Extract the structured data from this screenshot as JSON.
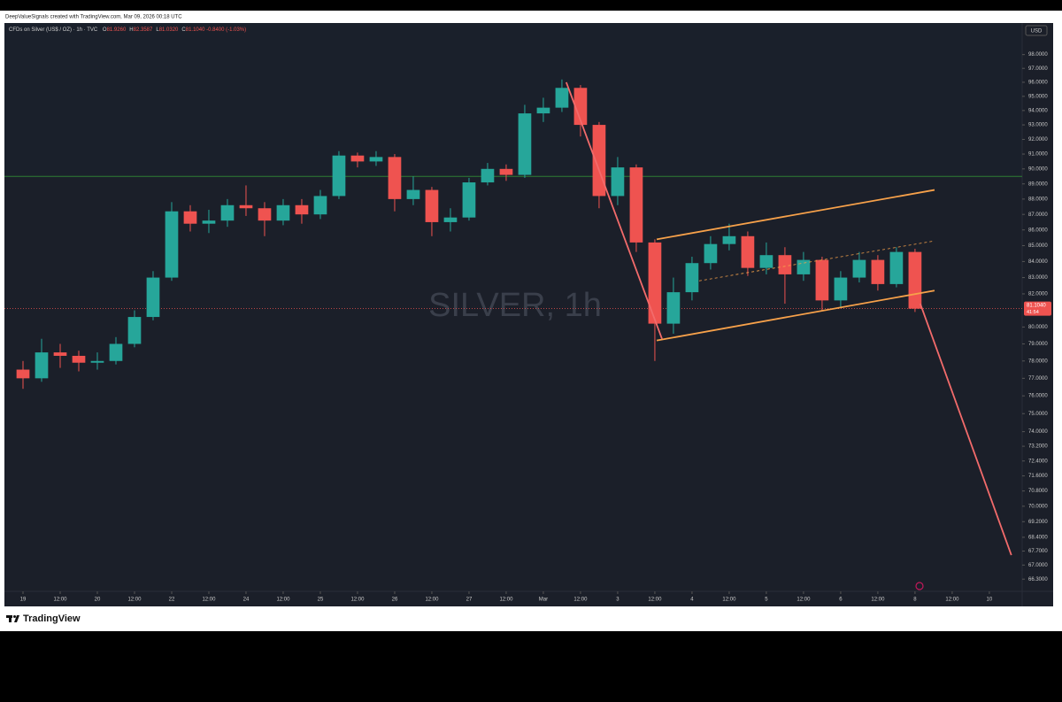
{
  "header": {
    "caption": "DeepValueSignals created with TradingView.com, Mar 09, 2026 00:18 UTC"
  },
  "footer": {
    "brand": "TradingView"
  },
  "chart_data": {
    "type": "candlestick",
    "legend": {
      "symbol": "CFDs on Silver (US$ / OZ) · 1h · TVC",
      "fields": [
        {
          "key": "O",
          "value": "81.9260"
        },
        {
          "key": "H",
          "value": "82.3587"
        },
        {
          "key": "L",
          "value": "81.0320"
        },
        {
          "key": "C",
          "value": "81.1040"
        }
      ],
      "change": "-0.8400 (-1.03%)"
    },
    "watermark": "SILVER, 1h",
    "currency": "USD",
    "log_scale": true,
    "up_color": "#26a69a",
    "down_color": "#ef5350",
    "xlim": [
      -6,
      322.6
    ],
    "ylim": [
      65.7,
      100.2
    ],
    "xticks": [
      {
        "value": 0,
        "label": "19"
      },
      {
        "value": 12,
        "label": "12:00"
      },
      {
        "value": 24,
        "label": "20"
      },
      {
        "value": 36,
        "label": "12:00"
      },
      {
        "value": 48,
        "label": "22"
      },
      {
        "value": 60,
        "label": "12:00"
      },
      {
        "value": 72,
        "label": "24"
      },
      {
        "value": 84,
        "label": "12:00"
      },
      {
        "value": 96,
        "label": "25"
      },
      {
        "value": 108,
        "label": "12:00"
      },
      {
        "value": 120,
        "label": "26"
      },
      {
        "value": 132,
        "label": "12:00"
      },
      {
        "value": 144,
        "label": "27"
      },
      {
        "value": 156,
        "label": "12:00"
      },
      {
        "value": 168,
        "label": "Mar"
      },
      {
        "value": 180,
        "label": "12:00"
      },
      {
        "value": 192,
        "label": "3"
      },
      {
        "value": 204,
        "label": "12:00"
      },
      {
        "value": 216,
        "label": "4"
      },
      {
        "value": 228,
        "label": "12:00"
      },
      {
        "value": 240,
        "label": "5"
      },
      {
        "value": 252,
        "label": "12:00"
      },
      {
        "value": 264,
        "label": "6"
      },
      {
        "value": 276,
        "label": "12:00"
      },
      {
        "value": 288,
        "label": "8"
      },
      {
        "value": 300,
        "label": "12:00"
      },
      {
        "value": 312,
        "label": "10"
      }
    ],
    "yticks": [
      {
        "value": 98,
        "label": "98.0000"
      },
      {
        "value": 97,
        "label": "97.0000"
      },
      {
        "value": 96,
        "label": "96.0000"
      },
      {
        "value": 95,
        "label": "95.0000"
      },
      {
        "value": 94,
        "label": "94.0000"
      },
      {
        "value": 93,
        "label": "93.0000"
      },
      {
        "value": 92,
        "label": "92.0000"
      },
      {
        "value": 91,
        "label": "91.0000"
      },
      {
        "value": 90,
        "label": "90.0000"
      },
      {
        "value": 89,
        "label": "89.0000"
      },
      {
        "value": 88,
        "label": "88.0000"
      },
      {
        "value": 87,
        "label": "87.0000"
      },
      {
        "value": 86,
        "label": "86.0000"
      },
      {
        "value": 85,
        "label": "85.0000"
      },
      {
        "value": 84,
        "label": "84.0000"
      },
      {
        "value": 83,
        "label": "83.0000"
      },
      {
        "value": 82,
        "label": "82.0000"
      },
      {
        "value": 80,
        "label": "80.0000"
      },
      {
        "value": 79,
        "label": "79.0000"
      },
      {
        "value": 78,
        "label": "78.0000"
      },
      {
        "value": 77,
        "label": "77.0000"
      },
      {
        "value": 76,
        "label": "76.0000"
      },
      {
        "value": 75,
        "label": "75.0000"
      },
      {
        "value": 74,
        "label": "74.0000"
      },
      {
        "value": 73.2,
        "label": "73.2000"
      },
      {
        "value": 72.4,
        "label": "72.4000"
      },
      {
        "value": 71.6,
        "label": "71.6000"
      },
      {
        "value": 70.8,
        "label": "70.8000"
      },
      {
        "value": 70,
        "label": "70.0000"
      },
      {
        "value": 69.2,
        "label": "69.2000"
      },
      {
        "value": 68.4,
        "label": "68.4000"
      },
      {
        "value": 67.7,
        "label": "67.7000"
      },
      {
        "value": 67,
        "label": "67.0000"
      },
      {
        "value": 66.3,
        "label": "66.3000"
      }
    ],
    "last_price": {
      "value": 81.104,
      "label": "81.1040",
      "countdown": "41:54",
      "color": "#ef5350"
    },
    "candles": {
      "x": [
        0,
        6,
        12,
        18,
        24,
        30,
        36,
        42,
        48,
        54,
        60,
        66,
        72,
        78,
        84,
        90,
        96,
        102,
        108,
        114,
        120,
        126,
        132,
        138,
        144,
        150,
        156,
        162,
        168,
        174,
        180,
        186,
        192,
        198,
        204,
        210,
        216,
        222,
        228,
        234,
        240,
        246,
        252,
        258,
        264,
        270,
        276,
        282,
        288
      ],
      "open": [
        77.5,
        77.0,
        78.5,
        78.3,
        77.9,
        78.0,
        79.0,
        80.6,
        83.0,
        87.2,
        86.4,
        86.6,
        87.6,
        87.4,
        86.6,
        87.6,
        87.0,
        88.2,
        90.9,
        90.5,
        90.8,
        88.0,
        88.6,
        86.5,
        86.8,
        89.1,
        90.0,
        89.6,
        93.8,
        94.2,
        95.6,
        93.0,
        88.2,
        90.1,
        85.2,
        80.2,
        82.1,
        83.9,
        85.1,
        85.6,
        83.6,
        84.4,
        83.2,
        84.1,
        81.6,
        83.0,
        84.1,
        82.6,
        84.6
      ],
      "high": [
        78.0,
        79.3,
        79.0,
        78.6,
        78.5,
        79.4,
        81.0,
        83.4,
        87.8,
        87.6,
        87.3,
        88.0,
        88.9,
        87.8,
        88.0,
        88.0,
        88.6,
        91.2,
        91.1,
        91.2,
        91.0,
        89.5,
        88.8,
        87.4,
        89.4,
        90.4,
        90.3,
        94.4,
        94.9,
        96.2,
        95.8,
        93.2,
        90.8,
        90.3,
        85.4,
        83.0,
        84.3,
        85.6,
        86.4,
        85.9,
        85.2,
        84.9,
        84.6,
        84.3,
        83.4,
        84.6,
        84.4,
        84.9,
        84.8
      ],
      "low": [
        76.4,
        76.8,
        77.6,
        77.4,
        77.5,
        77.8,
        78.8,
        80.4,
        82.8,
        85.9,
        85.8,
        86.2,
        86.9,
        85.6,
        86.3,
        86.4,
        86.7,
        88.0,
        90.1,
        90.2,
        87.2,
        87.6,
        85.6,
        85.9,
        86.6,
        88.9,
        89.2,
        89.4,
        93.2,
        93.9,
        92.2,
        87.4,
        87.6,
        84.6,
        78.0,
        79.6,
        81.6,
        83.5,
        84.7,
        83.1,
        83.2,
        81.4,
        82.8,
        81.0,
        81.2,
        82.7,
        82.2,
        82.4,
        80.9
      ],
      "close": [
        77.0,
        78.5,
        78.3,
        77.9,
        78.0,
        79.0,
        80.6,
        83.0,
        87.2,
        86.4,
        86.6,
        87.6,
        87.4,
        86.6,
        87.6,
        87.0,
        88.2,
        90.9,
        90.5,
        90.8,
        88.0,
        88.6,
        86.5,
        86.8,
        89.1,
        90.0,
        89.6,
        93.8,
        94.2,
        95.6,
        93.0,
        88.2,
        90.1,
        85.2,
        80.2,
        82.1,
        83.9,
        85.1,
        85.6,
        83.6,
        84.4,
        83.2,
        84.1,
        81.6,
        83.0,
        84.1,
        82.6,
        84.6,
        81.1
      ]
    },
    "horizontal_line": {
      "value": 89.5,
      "color": "#2e7d32"
    },
    "drawings": [
      {
        "color": "#f7a14a",
        "dashed": false,
        "x": [
          204.6,
          294.3
        ],
        "y": [
          85.4,
          88.6
        ]
      },
      {
        "color": "#f7a14a",
        "dashed": false,
        "x": [
          204.6,
          294.3
        ],
        "y": [
          79.2,
          82.2
        ]
      },
      {
        "color": "#f7a14a",
        "dashed": true,
        "x": [
          218.3,
          294.3
        ],
        "y": [
          82.8,
          85.3
        ]
      },
      {
        "color": "#f26b6b",
        "dashed": false,
        "x": [
          175.4,
          206.3
        ],
        "y": [
          96.0,
          79.3
        ]
      },
      {
        "color": "#f26b6b",
        "dashed": false,
        "x": [
          289.7,
          319.1
        ],
        "y": [
          81.4,
          67.5
        ]
      }
    ]
  }
}
